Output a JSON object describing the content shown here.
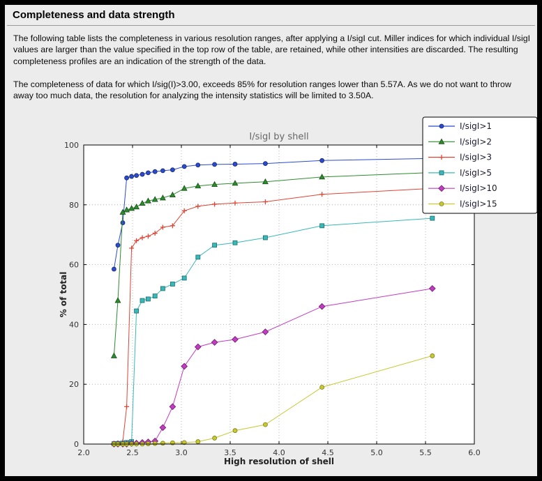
{
  "page": {
    "title": "Completeness and data strength",
    "paragraph1": "The following table lists the completeness in various resolution ranges, after applying a I/sigI cut. Miller indices for which individual I/sigI values are larger than the value specified in the top row of the table, are retained, while other intensities are discarded. The resulting completeness profiles are an indication of the strength of the data.",
    "paragraph2": "The completeness of data for which I/sig(I)>3.00, exceeds  85% for resolution ranges lower than 5.57A. As we do not want to throw away too much data, the resolution for analyzing the intensity statistics will be limited to 3.50A."
  },
  "chart_data": {
    "type": "line",
    "title": "I/sigI by shell",
    "xlabel": "High resolution of shell",
    "ylabel": "% of total",
    "xlim": [
      2.0,
      6.0
    ],
    "ylim": [
      0,
      100
    ],
    "grid": "dotted",
    "legend_position": "top-right",
    "plot_bg": "#ffffff",
    "figure_bg": "#ececec",
    "x_ticks": [
      2.0,
      2.5,
      3.0,
      3.5,
      4.0,
      4.5,
      5.0,
      5.5,
      6.0
    ],
    "x_tick_labels": [
      "2.0",
      "2.5",
      "3.0",
      "3.5",
      "4.0",
      "4.5",
      "5.0",
      "5.5",
      "6.0"
    ],
    "y_ticks": [
      0,
      20,
      40,
      60,
      80,
      100
    ],
    "y_tick_labels": [
      "0",
      "20",
      "40",
      "60",
      "80",
      "100"
    ],
    "x": [
      2.31,
      2.35,
      2.4,
      2.44,
      2.49,
      2.54,
      2.6,
      2.66,
      2.73,
      2.81,
      2.91,
      3.03,
      3.17,
      3.34,
      3.55,
      3.86,
      4.44,
      5.57
    ],
    "series": [
      {
        "name": "I/sigI>1",
        "color": "#2a4bcc",
        "edge": "#17286e",
        "marker": "circle",
        "values": [
          58.5,
          66.5,
          74.0,
          89.0,
          89.5,
          89.8,
          90.2,
          90.7,
          91.1,
          91.4,
          91.7,
          92.8,
          93.3,
          93.5,
          93.6,
          93.8,
          94.8,
          95.5
        ]
      },
      {
        "name": "I/sigI>2",
        "color": "#2e8b2e",
        "edge": "#174f17",
        "marker": "triangle",
        "values": [
          29.5,
          48.0,
          77.5,
          78.3,
          78.8,
          79.3,
          80.5,
          81.3,
          81.8,
          82.3,
          83.3,
          85.5,
          86.3,
          86.8,
          87.2,
          87.7,
          89.3,
          90.8
        ]
      },
      {
        "name": "I/sigI>3",
        "color": "#e04434",
        "edge": "#8f2417",
        "marker": "plus",
        "values": [
          0.2,
          0.4,
          0.8,
          12.5,
          65.5,
          68.0,
          69.0,
          69.5,
          70.5,
          72.5,
          73.0,
          78.0,
          79.5,
          80.2,
          80.6,
          81.0,
          83.5,
          85.5
        ]
      },
      {
        "name": "I/sigI>5",
        "color": "#38b8b8",
        "edge": "#1c6b6b",
        "marker": "square",
        "values": [
          0.1,
          0.2,
          0.3,
          0.5,
          0.8,
          44.5,
          48.0,
          48.5,
          49.5,
          52.0,
          53.5,
          55.5,
          62.5,
          66.5,
          67.3,
          69.0,
          73.0,
          75.5
        ]
      },
      {
        "name": "I/sigI>10",
        "color": "#c23cc2",
        "edge": "#6e1c6e",
        "marker": "diamond",
        "values": [
          0.0,
          0.0,
          0.0,
          0.0,
          0.2,
          0.3,
          0.5,
          0.7,
          1.0,
          5.5,
          12.5,
          26.0,
          32.5,
          34.0,
          35.0,
          37.5,
          46.0,
          52.0
        ]
      },
      {
        "name": "I/sigI>15",
        "color": "#c8c832",
        "edge": "#7d7d1a",
        "marker": "circle",
        "values": [
          0.0,
          0.0,
          0.0,
          0.0,
          0.0,
          0.0,
          0.0,
          0.1,
          0.2,
          0.3,
          0.4,
          0.5,
          0.8,
          2.0,
          4.5,
          6.5,
          19.0,
          29.5
        ]
      }
    ]
  }
}
